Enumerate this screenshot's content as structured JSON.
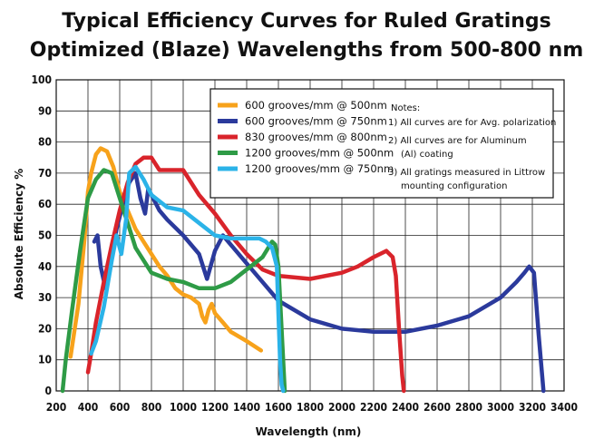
{
  "chart_data": {
    "type": "line",
    "title": [
      "Typical Efficiency Curves  for Ruled Gratings",
      "Optimized (Blaze) Wavelengths from 500-800 nm"
    ],
    "xlabel": "Wavelength (nm)",
    "ylabel": "Absolute Efficiency %",
    "xlim": [
      200,
      3400
    ],
    "ylim": [
      0,
      100
    ],
    "x_ticks": [
      200,
      400,
      600,
      800,
      1000,
      1200,
      1400,
      1600,
      1800,
      2000,
      2200,
      2400,
      2600,
      2800,
      3000,
      3200,
      3400
    ],
    "x_tick_labels": [
      "200",
      "400",
      "600",
      "800",
      "1000",
      "1200",
      "1400",
      "1600",
      "1800",
      "2000",
      "2200",
      "2400",
      "2600",
      "2800",
      "3000",
      "3200",
      "3400"
    ],
    "y_ticks": [
      0,
      10,
      20,
      30,
      40,
      50,
      60,
      70,
      80,
      90,
      100
    ],
    "grid": true,
    "legend_position": "top-right",
    "series": [
      {
        "name": "600 grooves/mm @ 500nm",
        "color": "#f7a21b",
        "x": [
          290,
          340,
          380,
          400,
          420,
          450,
          480,
          520,
          560,
          600,
          650,
          700,
          750,
          800,
          850,
          900,
          950,
          1000,
          1050,
          1100,
          1120,
          1140,
          1160,
          1180,
          1200,
          1250,
          1300,
          1400,
          1490
        ],
        "y": [
          11,
          28,
          50,
          64,
          70,
          76,
          78,
          77,
          72,
          64,
          58,
          52,
          48,
          44,
          40,
          37,
          33,
          31,
          30,
          28,
          24,
          22,
          26,
          28,
          25,
          22,
          19,
          16,
          13
        ]
      },
      {
        "name": "600 grooves/mm @ 750nm",
        "color": "#2b3a9c",
        "x": [
          440,
          460,
          480,
          510,
          540,
          580,
          620,
          660,
          700,
          730,
          760,
          780,
          800,
          850,
          900,
          1000,
          1100,
          1150,
          1200,
          1250,
          1300,
          1400,
          1500,
          1600,
          1800,
          2000,
          2200,
          2400,
          2600,
          2800,
          3000,
          3100,
          3150,
          3180,
          3210,
          3240,
          3270
        ],
        "y": [
          48,
          50,
          40,
          33,
          40,
          52,
          60,
          67,
          70,
          62,
          57,
          65,
          63,
          58,
          55,
          50,
          44,
          36,
          45,
          50,
          47,
          41,
          35,
          29,
          23,
          20,
          19,
          19,
          21,
          24,
          30,
          35,
          38,
          40,
          38,
          18,
          0
        ]
      },
      {
        "name": "830 grooves/mm @ 800nm",
        "color": "#d9242b",
        "x": [
          400,
          420,
          450,
          500,
          550,
          600,
          650,
          700,
          750,
          800,
          850,
          900,
          1000,
          1100,
          1200,
          1300,
          1400,
          1500,
          1600,
          1800,
          2000,
          2100,
          2200,
          2280,
          2320,
          2340,
          2360,
          2380,
          2390
        ],
        "y": [
          6,
          12,
          22,
          35,
          47,
          58,
          67,
          73,
          75,
          75,
          71,
          71,
          71,
          63,
          57,
          50,
          44,
          39,
          37,
          36,
          38,
          40,
          43,
          45,
          43,
          37,
          20,
          5,
          0
        ]
      },
      {
        "name": "1200 grooves/mm  @ 500nm",
        "color": "#2e9b46",
        "x": [
          240,
          260,
          280,
          300,
          350,
          400,
          450,
          500,
          550,
          600,
          650,
          700,
          800,
          900,
          1000,
          1100,
          1200,
          1300,
          1400,
          1500,
          1560,
          1580,
          1600,
          1620,
          1640
        ],
        "y": [
          0,
          10,
          18,
          26,
          45,
          62,
          68,
          71,
          70,
          62,
          54,
          46,
          38,
          36,
          35,
          33,
          33,
          35,
          39,
          43,
          48,
          47,
          40,
          20,
          0
        ]
      },
      {
        "name": "1200 grooves/mm  @ 750nm",
        "color": "#2bb3e8",
        "x": [
          420,
          450,
          500,
          550,
          580,
          610,
          640,
          660,
          700,
          750,
          800,
          900,
          1000,
          1100,
          1200,
          1300,
          1400,
          1480,
          1520,
          1560,
          1590,
          1600,
          1610,
          1620,
          1630
        ],
        "y": [
          12,
          16,
          27,
          42,
          50,
          44,
          55,
          70,
          72,
          68,
          63,
          59,
          58,
          54,
          50,
          49,
          49,
          49,
          48,
          46,
          40,
          25,
          10,
          2,
          0
        ]
      }
    ],
    "notes": [
      "Notes:",
      "1) All curves are for Avg. polarization",
      "2) All curves are for Aluminum",
      "(Al) coating",
      "3) All gratings measured in Littrow",
      "mounting configuration"
    ]
  }
}
